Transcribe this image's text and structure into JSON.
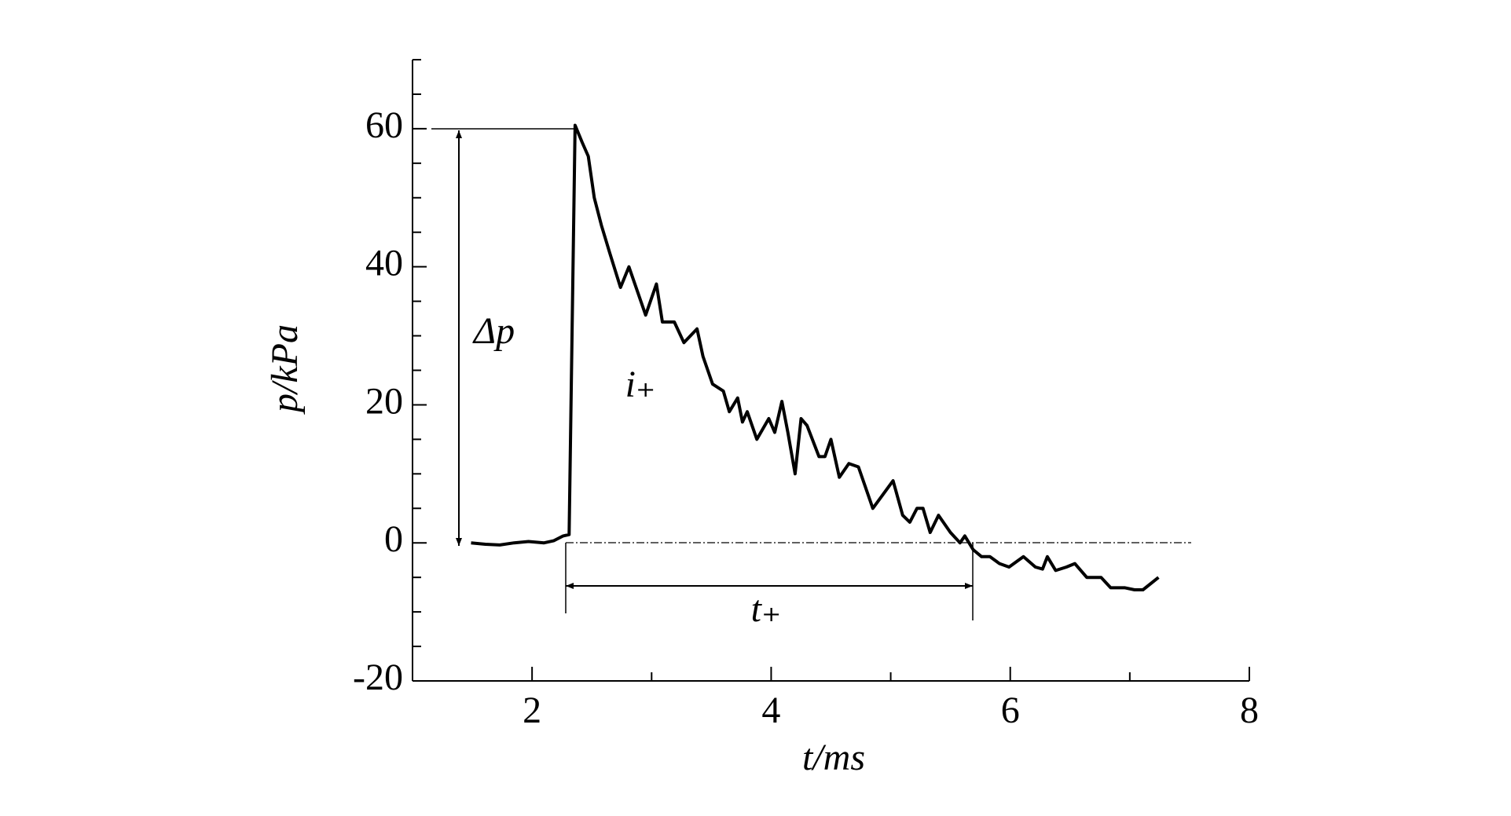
{
  "chart_data": {
    "type": "line",
    "xlabel": "t/ms",
    "ylabel": "p/kPa",
    "annotations": [
      "Δp",
      "i₊",
      "t₊"
    ],
    "series": [
      {
        "color": "#000000",
        "x": [
          1.49,
          1.61,
          1.73,
          1.85,
          1.97,
          2.1,
          2.18,
          2.26,
          2.31,
          2.36,
          2.42,
          2.47,
          2.52,
          2.58,
          2.65,
          2.74,
          2.81,
          2.95,
          3.04,
          3.09,
          3.19,
          3.27,
          3.38,
          3.43,
          3.51,
          3.6,
          3.65,
          3.72,
          3.76,
          3.8,
          3.88,
          3.98,
          4.03,
          4.09,
          4.14,
          4.2,
          4.25,
          4.3,
          4.4,
          4.45,
          4.5,
          4.57,
          4.65,
          4.73,
          4.85,
          5.02,
          5.1,
          5.16,
          5.22,
          5.27,
          5.33,
          5.4,
          5.5,
          5.58,
          5.62,
          5.69,
          5.76,
          5.83,
          5.91,
          5.99,
          6.11,
          6.21,
          6.27,
          6.31,
          6.38,
          6.47,
          6.54,
          6.64,
          6.76,
          6.84,
          6.96,
          7.04,
          7.11,
          7.24
        ],
        "values": [
          0,
          -0.2,
          -0.3,
          0,
          0.2,
          0,
          0.3,
          1,
          1.2,
          60.5,
          58,
          56,
          50,
          46,
          42,
          37,
          40,
          33,
          37.5,
          32,
          32,
          29,
          31,
          27,
          23,
          22,
          19,
          21,
          17.5,
          19,
          15,
          18,
          16,
          20.5,
          16,
          10,
          18,
          17,
          12.5,
          12.5,
          15,
          9.5,
          11.5,
          11,
          5,
          9,
          4,
          3,
          5,
          5,
          1.5,
          4,
          1.5,
          0,
          1,
          -1,
          -2,
          -2,
          -3,
          -3.5,
          -2,
          -3.5,
          -3.8,
          -2,
          -4,
          -3.5,
          -3,
          -5,
          -5,
          -6.5,
          -6.5,
          -6.8,
          -6.8,
          -5
        ]
      }
    ],
    "xlim": [
      1,
      8
    ],
    "xticks": [
      2,
      4,
      6,
      8
    ],
    "xticks_minor": [
      3,
      5,
      7
    ],
    "ylim": [
      -20,
      70
    ],
    "yticks": [
      -20,
      0,
      20,
      40,
      60
    ],
    "yticks_minor": [
      -15,
      -10,
      -5,
      5,
      10,
      15,
      25,
      30,
      35,
      45,
      50,
      55,
      65,
      70
    ]
  }
}
